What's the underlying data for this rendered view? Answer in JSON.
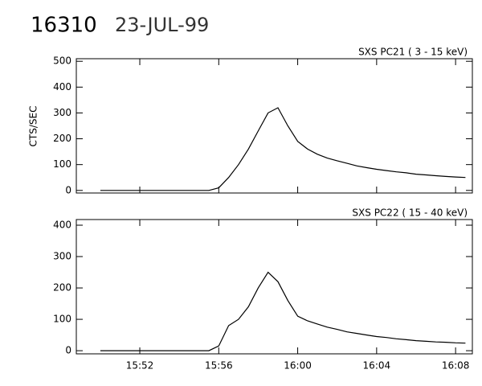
{
  "header": {
    "id": "16310",
    "date": "23-JUL-99"
  },
  "chart_data": [
    {
      "type": "line",
      "subtitle": "SXS PC21  (  3 - 15 keV)",
      "y_label": "CTS/SEC",
      "color": "#000000",
      "x": [
        "15:50:00",
        "15:50:30",
        "15:51:00",
        "15:51:30",
        "15:52:00",
        "15:52:30",
        "15:53:00",
        "15:53:30",
        "15:54:00",
        "15:54:30",
        "15:55:00",
        "15:55:30",
        "15:56:00",
        "15:56:30",
        "15:57:00",
        "15:57:30",
        "15:58:00",
        "15:58:30",
        "15:59:00",
        "15:59:30",
        "16:00:00",
        "16:00:30",
        "16:01:00",
        "16:01:30",
        "16:02:00",
        "16:02:30",
        "16:03:00",
        "16:03:30",
        "16:04:00",
        "16:04:30",
        "16:05:00",
        "16:05:30",
        "16:06:00",
        "16:06:30",
        "16:07:00",
        "16:07:30",
        "16:08:00",
        "16:08:30"
      ],
      "values": [
        0,
        0,
        0,
        0,
        0,
        0,
        0,
        0,
        0,
        0,
        0,
        0,
        10,
        50,
        100,
        160,
        230,
        300,
        320,
        250,
        190,
        160,
        140,
        125,
        115,
        105,
        95,
        88,
        82,
        77,
        72,
        68,
        63,
        60,
        57,
        54,
        52,
        50
      ],
      "xlim": [
        "15:48:47",
        "16:08:51"
      ],
      "ylim": [
        -10,
        510
      ],
      "yticks": [
        0,
        100,
        200,
        300,
        400,
        500
      ]
    },
    {
      "type": "line",
      "subtitle": "SXS PC22  ( 15 - 40 keV)",
      "color": "#000000",
      "x": [
        "15:50:00",
        "15:50:30",
        "15:51:00",
        "15:51:30",
        "15:52:00",
        "15:52:30",
        "15:53:00",
        "15:53:30",
        "15:54:00",
        "15:54:30",
        "15:55:00",
        "15:55:30",
        "15:56:00",
        "15:56:30",
        "15:57:00",
        "15:57:30",
        "15:58:00",
        "15:58:30",
        "15:59:00",
        "15:59:30",
        "16:00:00",
        "16:00:30",
        "16:01:00",
        "16:01:30",
        "16:02:00",
        "16:02:30",
        "16:03:00",
        "16:03:30",
        "16:04:00",
        "16:04:30",
        "16:05:00",
        "16:05:30",
        "16:06:00",
        "16:06:30",
        "16:07:00",
        "16:07:30",
        "16:08:00",
        "16:08:30"
      ],
      "values": [
        0,
        0,
        0,
        0,
        0,
        0,
        0,
        0,
        0,
        0,
        0,
        0,
        15,
        80,
        100,
        140,
        200,
        250,
        220,
        160,
        110,
        95,
        85,
        75,
        68,
        60,
        55,
        50,
        45,
        42,
        38,
        35,
        32,
        30,
        28,
        27,
        25,
        24
      ],
      "xlim": [
        "15:48:47",
        "16:08:51"
      ],
      "ylim": [
        -10,
        418
      ],
      "yticks": [
        0,
        100,
        200,
        300,
        400
      ],
      "xticks": [
        "15:52",
        "15:56",
        "16:00",
        "16:04",
        "16:08"
      ]
    }
  ]
}
